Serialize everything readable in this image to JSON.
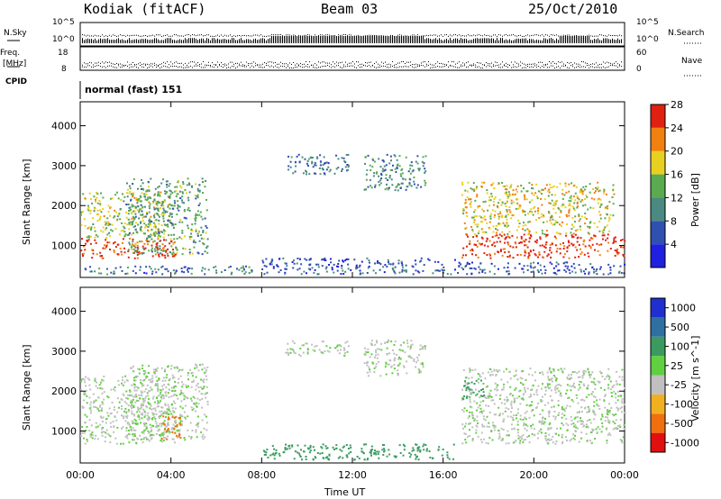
{
  "header": {
    "station": "Kodiak (fitACF)",
    "beam": "Beam 03",
    "date": "25/Oct/2010"
  },
  "status_panels": {
    "nsky_label": "N.Sky",
    "nsearch_label": "N.Search",
    "freq_label": "Freq.",
    "freq_unit": "[MHz]",
    "nave_label": "Nave",
    "cpid_label": "CPID",
    "cpid_value": "normal (fast) 151",
    "noise_ticks": [
      "10^5",
      "10^0"
    ],
    "freq_ticks": [
      "18",
      "8"
    ],
    "nave_ticks": [
      "60",
      "0"
    ]
  },
  "chart_data": [
    {
      "type": "heatmap",
      "name": "Power",
      "xlabel": "Time UT",
      "ylabel": "Slant Range [km]",
      "xlim": [
        0,
        24
      ],
      "ylim": [
        200,
        4600
      ],
      "x_ticks": [
        "00:00",
        "04:00",
        "08:00",
        "12:00",
        "16:00",
        "20:00",
        "00:00"
      ],
      "y_ticks": [
        1000,
        2000,
        3000,
        4000
      ],
      "colorbar": {
        "label": "Power [dB]",
        "ticks": [
          4,
          8,
          12,
          16,
          20,
          24,
          28
        ],
        "colors": [
          "#2020e0",
          "#3050b0",
          "#4a8a80",
          "#5aaa50",
          "#e8d020",
          "#f08010",
          "#e02010"
        ]
      },
      "regions": [
        {
          "t0": 0.0,
          "t1": 4.2,
          "r0": 700,
          "r1": 1200,
          "value": 28
        },
        {
          "t0": 0.0,
          "t1": 4.0,
          "r0": 1200,
          "r1": 2400,
          "value": 18
        },
        {
          "t0": 2.0,
          "t1": 5.6,
          "r0": 800,
          "r1": 2700,
          "value": 14
        },
        {
          "t0": 0.0,
          "t1": 8.0,
          "r0": 300,
          "r1": 500,
          "value": 10
        },
        {
          "t0": 8.0,
          "t1": 16.5,
          "r0": 300,
          "r1": 700,
          "value": 8
        },
        {
          "t0": 9.0,
          "t1": 11.8,
          "r0": 2800,
          "r1": 3300,
          "value": 10
        },
        {
          "t0": 12.5,
          "t1": 15.2,
          "r0": 2400,
          "r1": 3300,
          "value": 12
        },
        {
          "t0": 16.8,
          "t1": 24.0,
          "r0": 700,
          "r1": 1300,
          "value": 28
        },
        {
          "t0": 16.8,
          "t1": 23.5,
          "r0": 1300,
          "r1": 2600,
          "value": 20
        },
        {
          "t0": 16.5,
          "t1": 24.0,
          "r0": 300,
          "r1": 600,
          "value": 8
        }
      ]
    },
    {
      "type": "heatmap",
      "name": "Velocity",
      "xlabel": "Time UT",
      "ylabel": "Slant Range [km]",
      "xlim": [
        0,
        24
      ],
      "ylim": [
        200,
        4600
      ],
      "x_ticks": [
        "00:00",
        "04:00",
        "08:00",
        "12:00",
        "16:00",
        "20:00",
        "00:00"
      ],
      "y_ticks": [
        1000,
        2000,
        3000,
        4000
      ],
      "colorbar": {
        "label": "Velocity [m s^-1]",
        "ticks": [
          "1000",
          "500",
          "100",
          "25",
          "-25",
          "-100",
          "-500",
          "-1000"
        ],
        "colors": [
          "#2030d0",
          "#3070a0",
          "#3a9a60",
          "#60d040",
          "#c0c0c0",
          "#f0b020",
          "#f07010",
          "#e01010"
        ]
      },
      "regions": [
        {
          "t0": 0.0,
          "t1": 4.2,
          "r0": 700,
          "r1": 2400,
          "value": 0
        },
        {
          "t0": 2.0,
          "t1": 5.6,
          "r0": 800,
          "r1": 2700,
          "value": 0
        },
        {
          "t0": 3.5,
          "t1": 4.4,
          "r0": 800,
          "r1": 1400,
          "value": -300
        },
        {
          "t0": 8.0,
          "t1": 16.5,
          "r0": 300,
          "r1": 700,
          "value": 60
        },
        {
          "t0": 9.0,
          "t1": 11.8,
          "r0": 2900,
          "r1": 3300,
          "value": 0
        },
        {
          "t0": 12.5,
          "t1": 15.2,
          "r0": 2400,
          "r1": 3300,
          "value": 0
        },
        {
          "t0": 16.8,
          "t1": 24.0,
          "r0": 700,
          "r1": 2600,
          "value": 0
        },
        {
          "t0": 16.8,
          "t1": 17.8,
          "r0": 1800,
          "r1": 2300,
          "value": 80
        }
      ]
    }
  ]
}
